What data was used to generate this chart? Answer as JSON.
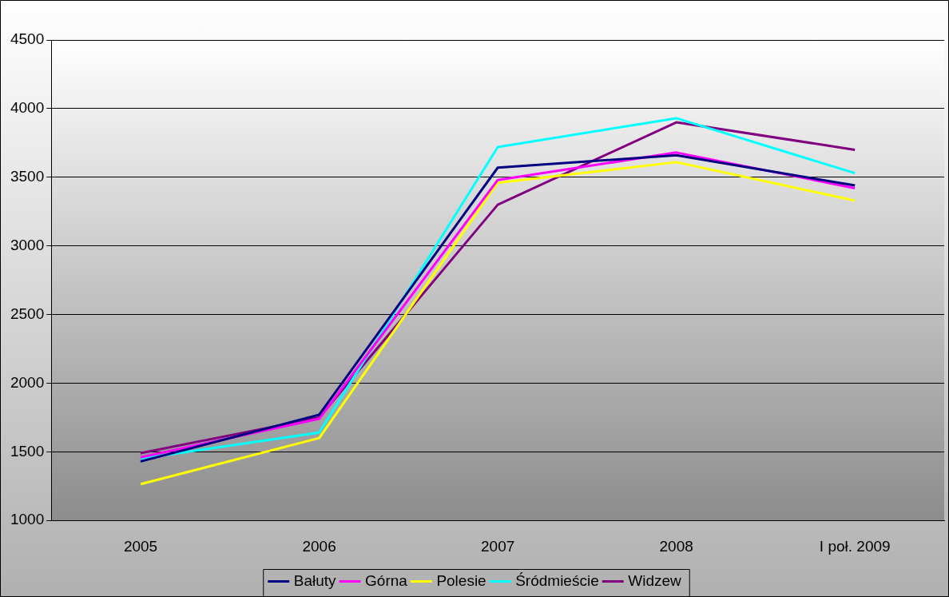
{
  "chart_data": {
    "type": "line",
    "categories": [
      "2005",
      "2006",
      "2007",
      "2008",
      "I poł. 2009"
    ],
    "series": [
      {
        "name": "Bałuty",
        "color": "#000080",
        "values": [
          1430,
          1770,
          3570,
          3660,
          3440
        ]
      },
      {
        "name": "Górna",
        "color": "#ff00ff",
        "values": [
          1460,
          1740,
          3480,
          3680,
          3420
        ]
      },
      {
        "name": "Polesie",
        "color": "#ffff00",
        "values": [
          1265,
          1600,
          3460,
          3610,
          3330
        ]
      },
      {
        "name": "Śródmieście",
        "color": "#00ffff",
        "values": [
          1450,
          1640,
          3720,
          3930,
          3530
        ]
      },
      {
        "name": "Widzew",
        "color": "#800080",
        "values": [
          1490,
          1750,
          3300,
          3900,
          3700
        ]
      }
    ],
    "ylim": [
      1000,
      4500
    ],
    "yticks": [
      1000,
      1500,
      2000,
      2500,
      3000,
      3500,
      4000,
      4500
    ],
    "grid": "y",
    "legend": "bottom",
    "marker": "none",
    "line_style": "solid"
  }
}
